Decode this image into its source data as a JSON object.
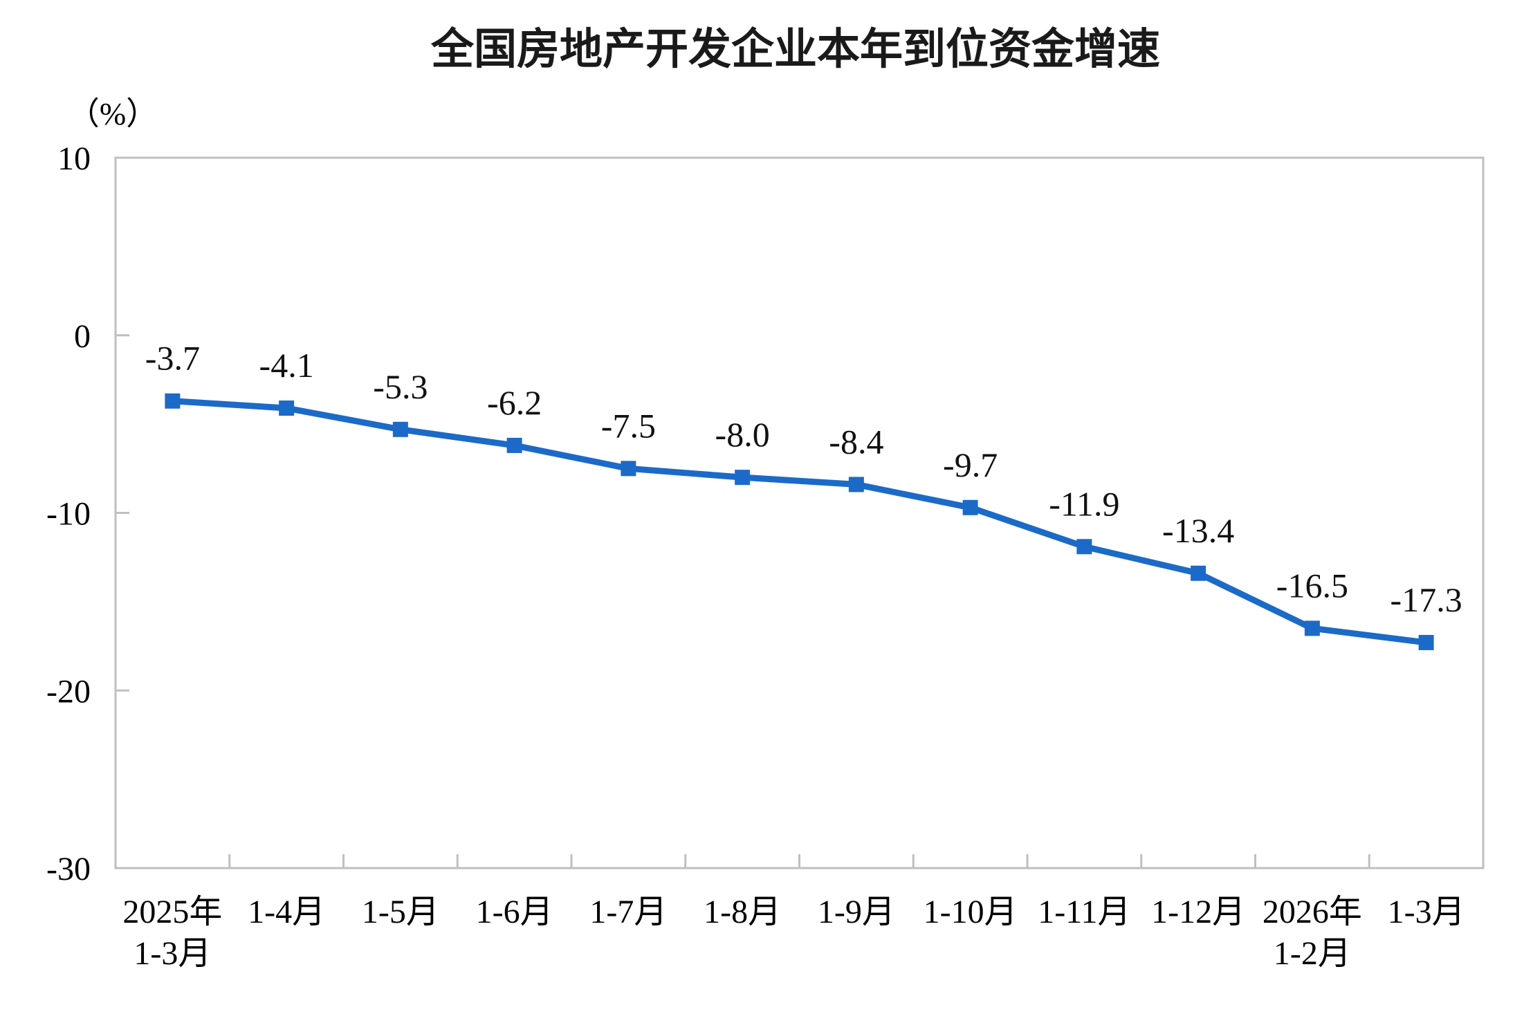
{
  "chart_data": {
    "type": "line",
    "title": "全国房地产开发企业本年到位资金增速",
    "ylabel": "（%）",
    "xlabel": "",
    "categories": [
      "2025年\n1-3月",
      "1-4月",
      "1-5月",
      "1-6月",
      "1-7月",
      "1-8月",
      "1-9月",
      "1-10月",
      "1-11月",
      "1-12月",
      "2026年\n1-2月",
      "1-3月"
    ],
    "values": [
      -3.7,
      -4.1,
      -5.3,
      -6.2,
      -7.5,
      -8.0,
      -8.4,
      -9.7,
      -11.9,
      -13.4,
      -16.5,
      -17.3
    ],
    "data_labels": [
      "-3.7",
      "-4.1",
      "-5.3",
      "-6.2",
      "-7.5",
      "-8.0",
      "-8.4",
      "-9.7",
      "-11.9",
      "-13.4",
      "-16.5",
      "-17.3"
    ],
    "ylim": [
      -30,
      10
    ],
    "yticks": [
      10,
      0,
      -10,
      -20,
      -30
    ],
    "grid": false,
    "legend": false,
    "marker": "square",
    "colors": {
      "line": "#1c6ac8",
      "marker": "#1c6ac8",
      "axis": "#bfbfbf",
      "text": "#000000"
    }
  }
}
